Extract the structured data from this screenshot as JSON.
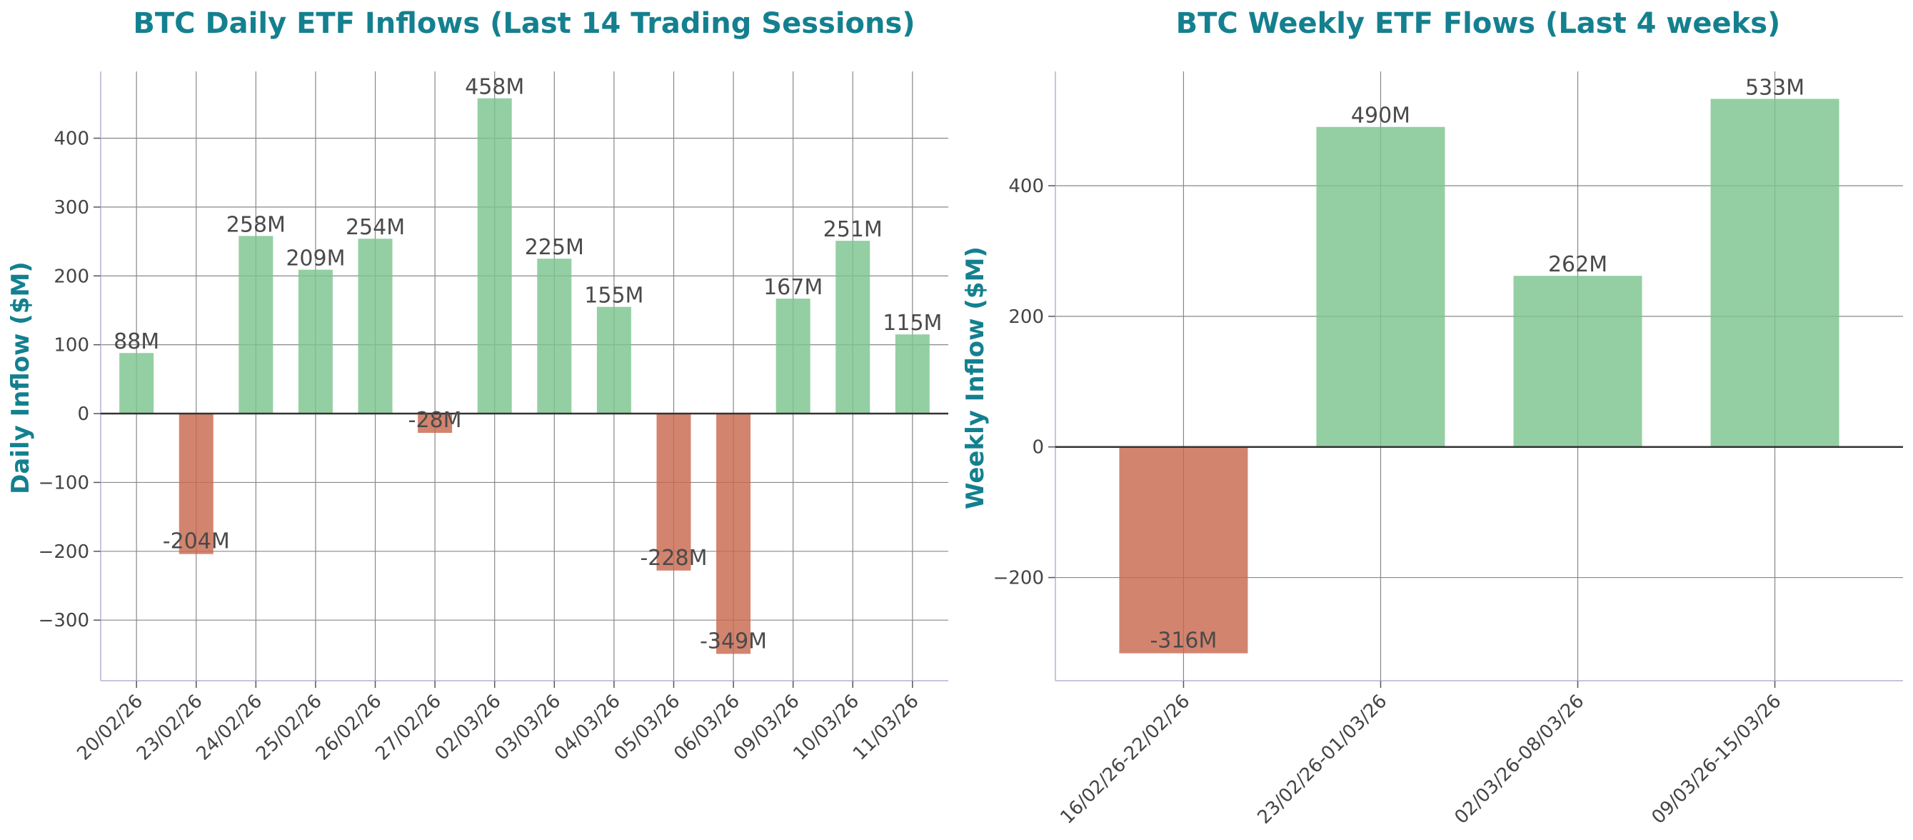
{
  "colors": {
    "title": "#14808f",
    "positive": "#7dc58f",
    "negative": "#c8694f",
    "grid": "#888888",
    "zero_line": "#333333",
    "spine": "#c5c5e0",
    "text": "#4a4a4a"
  },
  "chart_data": [
    {
      "type": "bar",
      "title": "BTC Daily ETF Inflows (Last 14 Trading Sessions)",
      "xlabel": "",
      "ylabel": "Daily Inflow ($M)",
      "ylim": [
        -388,
        497
      ],
      "yticks": [
        -300,
        -200,
        -100,
        0,
        100,
        200,
        300,
        400
      ],
      "grid": true,
      "categories": [
        "20/02/26",
        "23/02/26",
        "24/02/26",
        "25/02/26",
        "26/02/26",
        "27/02/26",
        "02/03/26",
        "03/03/26",
        "04/03/26",
        "05/03/26",
        "06/03/26",
        "09/03/26",
        "10/03/26",
        "11/03/26"
      ],
      "values": [
        88,
        -204,
        258,
        209,
        254,
        -28,
        458,
        225,
        155,
        -228,
        -349,
        167,
        251,
        115
      ],
      "data_labels": [
        "88M",
        "-204M",
        "258M",
        "209M",
        "254M",
        "-28M",
        "458M",
        "225M",
        "155M",
        "-228M",
        "-349M",
        "167M",
        "251M",
        "115M"
      ]
    },
    {
      "type": "bar",
      "title": "BTC Weekly ETF Flows (Last 4 weeks)",
      "xlabel": "",
      "ylabel": "Weekly Inflow ($M)",
      "ylim": [
        -358,
        575
      ],
      "yticks": [
        -200,
        0,
        200,
        400
      ],
      "grid": true,
      "categories": [
        "16/02/26-22/02/26",
        "23/02/26-01/03/26",
        "02/03/26-08/03/26",
        "09/03/26-15/03/26"
      ],
      "values": [
        -316,
        490,
        262,
        533
      ],
      "data_labels": [
        "-316M",
        "490M",
        "262M",
        "533M"
      ]
    }
  ]
}
